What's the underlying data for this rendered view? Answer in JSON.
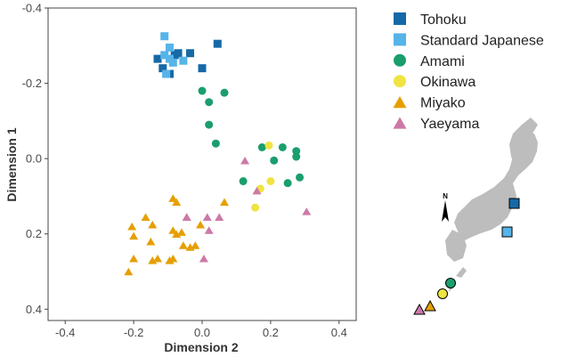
{
  "colors": {
    "Tohoku": "#1669a6",
    "Standard Japanese": "#56b4e9",
    "Amami": "#1a9e6e",
    "Okinawa": "#f0e442",
    "Miyako": "#e69f00",
    "Yaeyama": "#cc79a7",
    "japan_land": "#bdbdbd",
    "axis": "#444444"
  },
  "map": {
    "north_label": "N",
    "icon": "japan-map-with-region-markers"
  },
  "chart_data": {
    "type": "scatter",
    "xlabel": "Dimension 2",
    "ylabel": "Dimension 1",
    "xlim": [
      -0.45,
      0.45
    ],
    "ylim": [
      -0.4,
      0.43
    ],
    "y_inverted": true,
    "x_ticks": [
      -0.4,
      -0.2,
      0.0,
      0.2,
      0.4
    ],
    "x_tick_labels": [
      "-0.4",
      "-0.2",
      "0.0",
      "0.2",
      "0.4"
    ],
    "y_ticks": [
      -0.4,
      -0.2,
      0.0,
      0.2,
      0.4
    ],
    "y_tick_labels": [
      "-0.4",
      "-0.2",
      "0.0",
      "0.2",
      "0.4"
    ],
    "grid": false,
    "legend_placement": "right",
    "series": [
      {
        "name": "Tohoku",
        "marker": "square",
        "points": [
          [
            -0.13,
            -0.265
          ],
          [
            -0.115,
            -0.24
          ],
          [
            -0.095,
            -0.225
          ],
          [
            -0.08,
            -0.275
          ],
          [
            -0.07,
            -0.28
          ],
          [
            -0.035,
            -0.28
          ],
          [
            0.0,
            -0.24
          ],
          [
            0.045,
            -0.305
          ]
        ]
      },
      {
        "name": "Standard Japanese",
        "marker": "square",
        "points": [
          [
            -0.11,
            -0.325
          ],
          [
            -0.095,
            -0.295
          ],
          [
            -0.11,
            -0.275
          ],
          [
            -0.095,
            -0.265
          ],
          [
            -0.085,
            -0.255
          ],
          [
            -0.055,
            -0.26
          ],
          [
            -0.105,
            -0.225
          ]
        ]
      },
      {
        "name": "Amami",
        "marker": "circle",
        "points": [
          [
            0.0,
            -0.18
          ],
          [
            0.02,
            -0.15
          ],
          [
            0.065,
            -0.175
          ],
          [
            0.02,
            -0.09
          ],
          [
            0.04,
            -0.04
          ],
          [
            0.175,
            -0.03
          ],
          [
            0.235,
            -0.03
          ],
          [
            0.275,
            -0.02
          ],
          [
            0.275,
            -0.005
          ],
          [
            0.21,
            0.005
          ],
          [
            0.12,
            0.06
          ],
          [
            0.285,
            0.05
          ],
          [
            0.25,
            0.065
          ]
        ]
      },
      {
        "name": "Okinawa",
        "marker": "circle",
        "points": [
          [
            0.195,
            -0.035
          ],
          [
            0.17,
            0.08
          ],
          [
            0.2,
            0.06
          ],
          [
            0.155,
            0.13
          ]
        ]
      },
      {
        "name": "Miyako",
        "marker": "triangle",
        "points": [
          [
            -0.165,
            0.155
          ],
          [
            -0.205,
            0.18
          ],
          [
            -0.145,
            0.175
          ],
          [
            -0.2,
            0.205
          ],
          [
            -0.085,
            0.105
          ],
          [
            -0.045,
            0.155
          ],
          [
            -0.005,
            0.175
          ],
          [
            -0.085,
            0.19
          ],
          [
            -0.075,
            0.2
          ],
          [
            -0.06,
            0.195
          ],
          [
            -0.15,
            0.22
          ],
          [
            -0.055,
            0.23
          ],
          [
            -0.035,
            0.235
          ],
          [
            -0.02,
            0.23
          ],
          [
            -0.2,
            0.265
          ],
          [
            -0.13,
            0.265
          ],
          [
            -0.145,
            0.27
          ],
          [
            -0.085,
            0.265
          ],
          [
            -0.095,
            0.27
          ],
          [
            -0.215,
            0.3
          ],
          [
            -0.075,
            0.115
          ],
          [
            0.065,
            0.115
          ]
        ]
      },
      {
        "name": "Yaeyama",
        "marker": "triangle",
        "points": [
          [
            0.125,
            0.005
          ],
          [
            0.16,
            0.085
          ],
          [
            0.015,
            0.155
          ],
          [
            0.05,
            0.155
          ],
          [
            0.02,
            0.19
          ],
          [
            0.005,
            0.265
          ],
          [
            0.305,
            0.14
          ],
          [
            -0.045,
            0.155
          ]
        ]
      }
    ]
  }
}
